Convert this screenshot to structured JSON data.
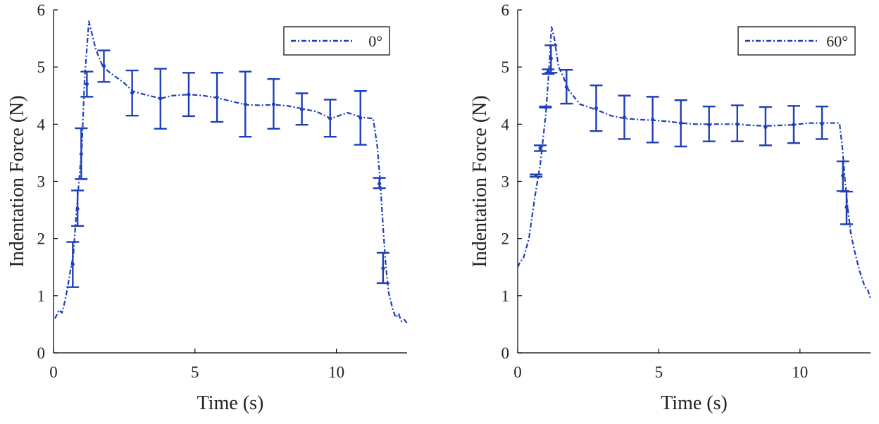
{
  "chart_data": [
    {
      "type": "line",
      "xlabel": "Time (s)",
      "ylabel": "Indentation Force (N)",
      "xlim": [
        0,
        12.5
      ],
      "ylim": [
        0,
        6
      ],
      "xticks": [
        0,
        5,
        10
      ],
      "yticks": [
        0,
        1,
        2,
        3,
        4,
        5,
        6
      ],
      "legend": {
        "position": "top-right",
        "entries": [
          "0°"
        ]
      },
      "color": "#1f3fb8",
      "series": [
        {
          "name": "0°",
          "line": {
            "x": [
              0.05,
              0.2,
              0.3,
              0.4,
              0.5,
              0.6,
              0.7,
              0.8,
              0.9,
              1.0,
              1.1,
              1.25,
              1.35,
              1.5,
              1.75,
              2.0,
              2.5,
              2.8,
              3.2,
              3.8,
              4.2,
              4.8,
              5.3,
              5.8,
              6.3,
              6.8,
              7.3,
              7.8,
              8.3,
              8.8,
              9.3,
              9.8,
              10.4,
              10.9,
              11.3,
              11.45,
              11.55,
              11.65,
              11.75,
              11.85,
              12.0,
              12.1,
              12.2,
              12.3,
              12.4,
              12.5
            ],
            "y": [
              0.6,
              0.75,
              0.7,
              0.9,
              1.15,
              1.45,
              1.7,
              2.4,
              3.0,
              3.6,
              4.8,
              5.8,
              5.6,
              5.3,
              5.0,
              4.9,
              4.72,
              4.58,
              4.52,
              4.45,
              4.5,
              4.52,
              4.5,
              4.46,
              4.4,
              4.34,
              4.33,
              4.34,
              4.32,
              4.27,
              4.22,
              4.1,
              4.2,
              4.12,
              4.1,
              3.6,
              3.0,
              2.2,
              1.5,
              1.05,
              0.75,
              0.62,
              0.68,
              0.55,
              0.58,
              0.52
            ]
          },
          "errorbars": {
            "x": [
              0.68,
              0.85,
              0.98,
              1.18,
              1.78,
              2.78,
              3.78,
              4.78,
              5.78,
              6.78,
              7.78,
              8.78,
              9.78,
              10.85,
              11.52,
              11.65
            ],
            "y": [
              1.55,
              2.52,
              3.48,
              4.7,
              5.02,
              4.55,
              4.45,
              4.52,
              4.47,
              4.35,
              4.35,
              4.26,
              4.1,
              4.11,
              2.96,
              1.48
            ],
            "low": [
              1.15,
              2.22,
              3.04,
              4.48,
              4.74,
              4.15,
              3.92,
              4.14,
              4.04,
              3.78,
              3.92,
              3.99,
              3.78,
              3.64,
              2.88,
              1.22
            ],
            "high": [
              1.94,
              2.84,
              3.93,
              4.92,
              5.29,
              4.94,
              4.97,
              4.9,
              4.9,
              4.92,
              4.79,
              4.54,
              4.43,
              4.58,
              3.06,
              1.75
            ]
          }
        }
      ]
    },
    {
      "type": "line",
      "xlabel": "Time (s)",
      "ylabel": "Indentation Force (N)",
      "xlim": [
        0,
        12.5
      ],
      "ylim": [
        0,
        6
      ],
      "xticks": [
        0,
        5,
        10
      ],
      "yticks": [
        0,
        1,
        2,
        3,
        4,
        5,
        6
      ],
      "legend": {
        "position": "top-right",
        "entries": [
          "60°"
        ]
      },
      "color": "#1f3fb8",
      "series": [
        {
          "name": "60°",
          "line": {
            "x": [
              0.0,
              0.1,
              0.2,
              0.4,
              0.6,
              0.8,
              1.0,
              1.1,
              1.2,
              1.3,
              1.45,
              1.6,
              1.8,
              2.2,
              2.8,
              3.3,
              3.8,
              4.3,
              4.8,
              5.3,
              5.8,
              6.3,
              6.8,
              7.3,
              7.8,
              8.3,
              8.8,
              9.3,
              9.8,
              10.3,
              10.8,
              11.2,
              11.4,
              11.5,
              11.6,
              11.7,
              11.8,
              11.9,
              12.0,
              12.1,
              12.2,
              12.3,
              12.4,
              12.5
            ],
            "y": [
              1.5,
              1.6,
              1.65,
              2.0,
              2.7,
              3.3,
              4.2,
              4.9,
              5.7,
              5.5,
              5.0,
              4.85,
              4.6,
              4.35,
              4.25,
              4.15,
              4.1,
              4.08,
              4.07,
              4.05,
              4.02,
              4.0,
              4.0,
              4.0,
              4.0,
              3.98,
              3.97,
              3.98,
              3.99,
              4.02,
              4.02,
              4.02,
              4.02,
              3.6,
              3.0,
              2.5,
              2.1,
              1.85,
              1.65,
              1.45,
              1.3,
              1.15,
              1.1,
              0.95
            ]
          },
          "errorbars": {
            "x": [
              0.65,
              0.8,
              0.98,
              1.08,
              1.18,
              1.73,
              2.78,
              3.78,
              4.78,
              5.78,
              6.78,
              7.78,
              8.78,
              9.78,
              10.78,
              11.52,
              11.65
            ],
            "y": [
              3.1,
              3.58,
              4.3,
              4.92,
              5.15,
              4.65,
              4.28,
              4.12,
              4.08,
              4.02,
              3.99,
              4.0,
              3.95,
              3.99,
              4.01,
              3.1,
              2.55
            ],
            "low": [
              3.08,
              3.53,
              4.29,
              4.88,
              4.9,
              4.36,
              3.88,
              3.74,
              3.68,
              3.61,
              3.7,
              3.7,
              3.63,
              3.67,
              3.74,
              2.83,
              2.25
            ],
            "high": [
              3.12,
              3.63,
              4.31,
              4.96,
              5.38,
              4.95,
              4.68,
              4.5,
              4.48,
              4.42,
              4.31,
              4.33,
              4.3,
              4.32,
              4.31,
              3.35,
              2.82
            ]
          }
        }
      ]
    }
  ]
}
